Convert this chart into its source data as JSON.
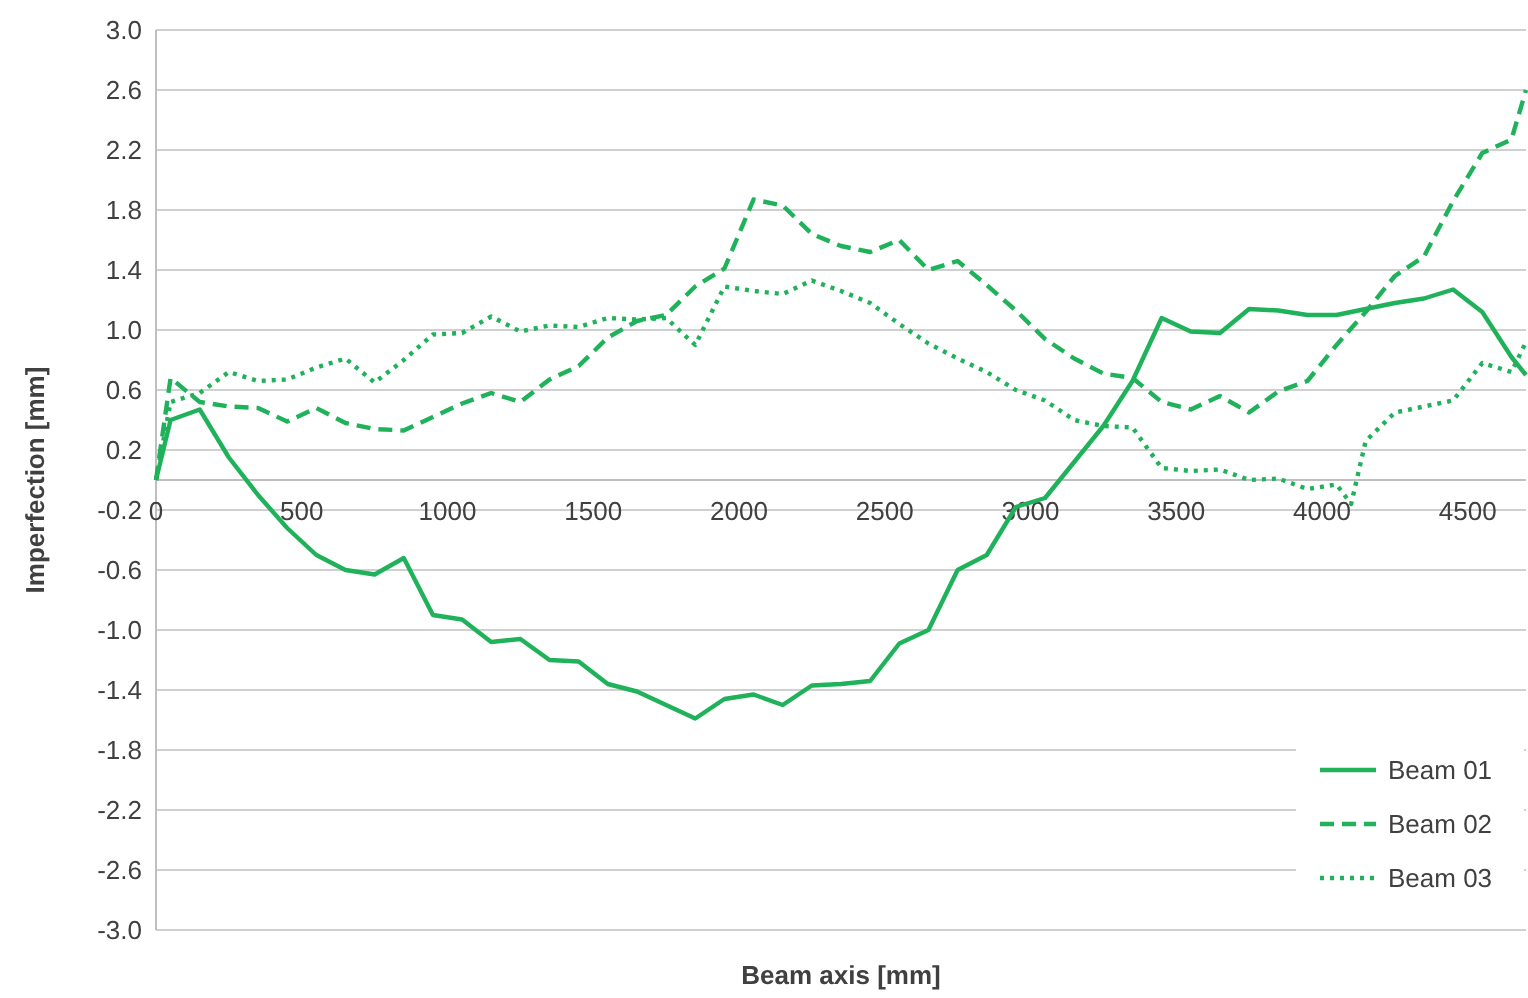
{
  "chart_data": {
    "type": "line",
    "xlabel": "Beam axis [mm]",
    "ylabel": "Imperfection [mm]",
    "xlim": [
      0,
      4700
    ],
    "xticks": [
      0,
      500,
      1000,
      1500,
      2000,
      2500,
      3000,
      3500,
      4000,
      4500
    ],
    "ylim": [
      -3,
      3
    ],
    "yticks": [
      {
        "value": -3,
        "label": "-3.0"
      },
      {
        "value": -2.6,
        "label": "-2.6"
      },
      {
        "value": -2.2,
        "label": "-2.2"
      },
      {
        "value": -1.8,
        "label": "-1.8"
      },
      {
        "value": -1.4,
        "label": "-1.4"
      },
      {
        "value": -1,
        "label": "-1.0"
      },
      {
        "value": -0.6,
        "label": "-0.6"
      },
      {
        "value": -0.2,
        "label": "-0.2"
      },
      {
        "value": 0.2,
        "label": "0.2"
      },
      {
        "value": 0.6,
        "label": "0.6"
      },
      {
        "value": 1,
        "label": "1.0"
      },
      {
        "value": 1.4,
        "label": "1.4"
      },
      {
        "value": 1.8,
        "label": "1.8"
      },
      {
        "value": 2.2,
        "label": "2.2"
      },
      {
        "value": 2.6,
        "label": "2.6"
      },
      {
        "value": 3,
        "label": "3.0"
      }
    ],
    "grid": "y",
    "legend": "bottom right",
    "marker": "none",
    "series": [
      {
        "name": "Beam 01",
        "color": "#1fb25a",
        "line_style": "solid",
        "x": [
          0,
          50,
          150,
          250,
          350,
          450,
          550,
          650,
          750,
          850,
          950,
          1050,
          1150,
          1250,
          1350,
          1450,
          1550,
          1650,
          1750,
          1850,
          1950,
          2050,
          2150,
          2250,
          2350,
          2450,
          2550,
          2650,
          2750,
          2850,
          2950,
          3050,
          3150,
          3250,
          3350,
          3450,
          3550,
          3650,
          3750,
          3850,
          3950,
          4050,
          4150,
          4250,
          4350,
          4450,
          4550,
          4650,
          4700
        ],
        "values": [
          0,
          0.4,
          0.47,
          0.15,
          -0.1,
          -0.32,
          -0.5,
          -0.6,
          -0.63,
          -0.52,
          -0.9,
          -0.93,
          -1.08,
          -1.06,
          -1.2,
          -1.21,
          -1.36,
          -1.41,
          -1.5,
          -1.59,
          -1.46,
          -1.43,
          -1.5,
          -1.37,
          -1.36,
          -1.34,
          -1.09,
          -1,
          -0.6,
          -0.5,
          -0.18,
          -0.12,
          0.12,
          0.36,
          0.66,
          1.08,
          0.99,
          0.98,
          1.14,
          1.13,
          1.1,
          1.1,
          1.14,
          1.18,
          1.21,
          1.27,
          1.12,
          0.82,
          0.7
        ]
      },
      {
        "name": "Beam 02",
        "color": "#1fb25a",
        "line_style": "dashed",
        "x": [
          0,
          50,
          150,
          250,
          350,
          450,
          550,
          650,
          750,
          850,
          950,
          1050,
          1150,
          1250,
          1350,
          1450,
          1550,
          1650,
          1750,
          1850,
          1950,
          2050,
          2150,
          2250,
          2350,
          2450,
          2550,
          2650,
          2750,
          2850,
          2950,
          3050,
          3150,
          3250,
          3350,
          3450,
          3550,
          3650,
          3750,
          3850,
          3950,
          4050,
          4150,
          4250,
          4350,
          4450,
          4550,
          4650,
          4700
        ],
        "values": [
          0,
          0.68,
          0.52,
          0.49,
          0.48,
          0.39,
          0.48,
          0.38,
          0.34,
          0.33,
          0.42,
          0.51,
          0.58,
          0.52,
          0.67,
          0.76,
          0.95,
          1.06,
          1.1,
          1.29,
          1.41,
          1.87,
          1.83,
          1.64,
          1.56,
          1.52,
          1.6,
          1.4,
          1.46,
          1.3,
          1.13,
          0.94,
          0.81,
          0.71,
          0.68,
          0.52,
          0.47,
          0.56,
          0.45,
          0.59,
          0.66,
          0.9,
          1.12,
          1.36,
          1.49,
          1.86,
          2.18,
          2.27,
          2.6
        ]
      },
      {
        "name": "Beam 03",
        "color": "#1fb25a",
        "line_style": "dotted",
        "x": [
          0,
          50,
          150,
          250,
          350,
          450,
          550,
          650,
          750,
          850,
          950,
          1050,
          1150,
          1250,
          1350,
          1450,
          1550,
          1650,
          1750,
          1850,
          1950,
          2050,
          2150,
          2250,
          2350,
          2450,
          2550,
          2650,
          2750,
          2850,
          2950,
          3050,
          3150,
          3250,
          3350,
          3450,
          3550,
          3650,
          3750,
          3850,
          3950,
          4050,
          4100,
          4150,
          4250,
          4350,
          4450,
          4550,
          4650,
          4700
        ],
        "values": [
          0,
          0.52,
          0.58,
          0.72,
          0.66,
          0.67,
          0.75,
          0.81,
          0.65,
          0.8,
          0.97,
          0.98,
          1.09,
          0.99,
          1.03,
          1.02,
          1.08,
          1.07,
          1.08,
          0.9,
          1.29,
          1.26,
          1.24,
          1.33,
          1.26,
          1.18,
          1.04,
          0.91,
          0.81,
          0.72,
          0.6,
          0.53,
          0.4,
          0.36,
          0.35,
          0.08,
          0.06,
          0.07,
          0,
          0.01,
          -0.06,
          -0.03,
          -0.16,
          0.26,
          0.45,
          0.49,
          0.53,
          0.78,
          0.72,
          0.92
        ]
      }
    ]
  }
}
